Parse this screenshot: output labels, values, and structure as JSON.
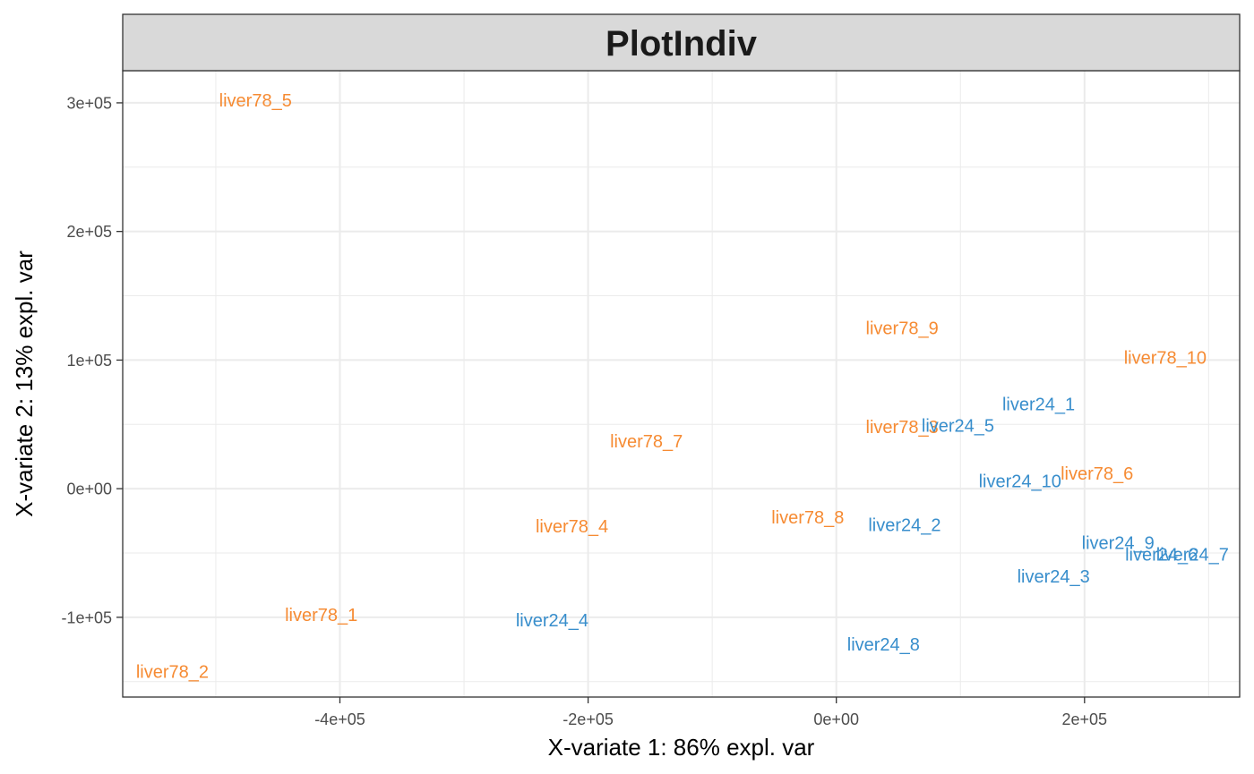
{
  "chart_data": {
    "type": "scatter",
    "title": "PlotIndiv",
    "xlabel": "X-variate 1: 86% expl. var",
    "ylabel": "X-variate 2: 13% expl. var",
    "xlim": [
      -575000,
      325000
    ],
    "ylim": [
      -162000,
      325000
    ],
    "x_ticks": [
      -400000,
      -200000,
      0,
      200000
    ],
    "x_tick_labels": [
      "-4e+05",
      "-2e+05",
      "0e+00",
      "2e+05"
    ],
    "y_ticks": [
      -100000,
      0,
      100000,
      200000,
      300000
    ],
    "y_tick_labels": [
      "-1e+05",
      "0e+00",
      "1e+05",
      "2e+05",
      "3e+05"
    ],
    "grid": true,
    "groups": [
      {
        "color": "#F68B33"
      },
      {
        "color": "#388ECC"
      }
    ],
    "points": [
      {
        "label": "liver78_5",
        "x": -468000,
        "y": 302000,
        "group": 0
      },
      {
        "label": "liver78_9",
        "x": 53000,
        "y": 125000,
        "group": 0
      },
      {
        "label": "liver78_10",
        "x": 265000,
        "y": 102000,
        "group": 0
      },
      {
        "label": "liver78_3",
        "x": 53000,
        "y": 48000,
        "group": 0
      },
      {
        "label": "liver78_7",
        "x": -153000,
        "y": 37000,
        "group": 0
      },
      {
        "label": "liver78_6",
        "x": 210000,
        "y": 12000,
        "group": 0
      },
      {
        "label": "liver78_8",
        "x": -23000,
        "y": -22000,
        "group": 0
      },
      {
        "label": "liver78_4",
        "x": -213000,
        "y": -29000,
        "group": 0
      },
      {
        "label": "liver78_1",
        "x": -415000,
        "y": -98000,
        "group": 0
      },
      {
        "label": "liver78_2",
        "x": -535000,
        "y": -142000,
        "group": 0
      },
      {
        "label": "liver24_1",
        "x": 163000,
        "y": 66000,
        "group": 1
      },
      {
        "label": "liver24_5",
        "x": 98000,
        "y": 49000,
        "group": 1
      },
      {
        "label": "liver24_10",
        "x": 148000,
        "y": 6000,
        "group": 1
      },
      {
        "label": "liver24_2",
        "x": 55000,
        "y": -28000,
        "group": 1
      },
      {
        "label": "liver24_9",
        "x": 227000,
        "y": -42000,
        "group": 1
      },
      {
        "label": "liver24_6",
        "x": 262000,
        "y": -51000,
        "group": 1
      },
      {
        "label": "liver24_7",
        "x": 287000,
        "y": -51000,
        "group": 1
      },
      {
        "label": "liver24_3",
        "x": 175000,
        "y": -68000,
        "group": 1
      },
      {
        "label": "liver24_4",
        "x": -229000,
        "y": -102000,
        "group": 1
      },
      {
        "label": "liver24_8",
        "x": 38000,
        "y": -121000,
        "group": 1
      }
    ]
  }
}
